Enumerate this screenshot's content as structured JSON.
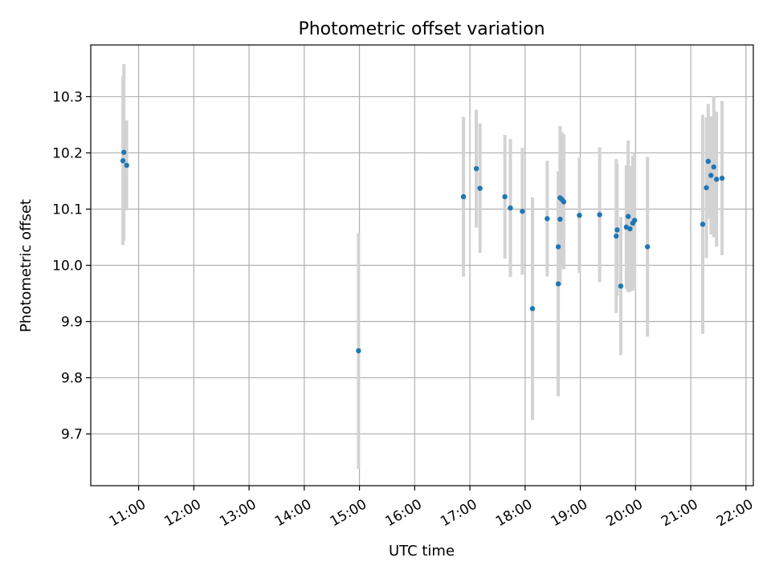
{
  "chart_data": {
    "type": "scatter",
    "title": "Photometric offset variation",
    "xlabel": "UTC time",
    "ylabel": "Photometric offset",
    "x_unit": "hours UTC",
    "xlim": [
      "10:08",
      "22:08"
    ],
    "ylim": [
      9.608,
      10.392
    ],
    "x_ticks": [
      "11:00",
      "12:00",
      "13:00",
      "14:00",
      "15:00",
      "16:00",
      "17:00",
      "18:00",
      "19:00",
      "20:00",
      "21:00",
      "22:00"
    ],
    "y_ticks": [
      "9.7",
      "9.8",
      "9.9",
      "10.0",
      "10.1",
      "10.2",
      "10.3"
    ],
    "grid": true,
    "legend": "none",
    "point_color": "#1f77b4",
    "errorbar_color": "#d3d3d3",
    "points": [
      {
        "x": "10:43",
        "y": 10.186,
        "err": 0.15
      },
      {
        "x": "10:44",
        "y": 10.201,
        "err": 0.157
      },
      {
        "x": "10:47",
        "y": 10.178,
        "err": 0.08
      },
      {
        "x": "14:59",
        "y": 9.848,
        "err": 0.21
      },
      {
        "x": "16:53",
        "y": 10.122,
        "err": 0.142
      },
      {
        "x": "17:07",
        "y": 10.172,
        "err": 0.105
      },
      {
        "x": "17:11",
        "y": 10.137,
        "err": 0.115
      },
      {
        "x": "17:38",
        "y": 10.122,
        "err": 0.11
      },
      {
        "x": "17:44",
        "y": 10.102,
        "err": 0.123
      },
      {
        "x": "17:57",
        "y": 10.096,
        "err": 0.113
      },
      {
        "x": "18:08",
        "y": 9.923,
        "err": 0.198
      },
      {
        "x": "18:24",
        "y": 10.083,
        "err": 0.103
      },
      {
        "x": "18:36",
        "y": 10.033,
        "err": 0.12
      },
      {
        "x": "18:36",
        "y": 9.967,
        "err": 0.2
      },
      {
        "x": "18:38",
        "y": 10.082,
        "err": 0.118
      },
      {
        "x": "18:38",
        "y": 10.12,
        "err": 0.128
      },
      {
        "x": "18:40",
        "y": 10.117,
        "err": 0.12
      },
      {
        "x": "18:42",
        "y": 10.113,
        "err": 0.12
      },
      {
        "x": "18:59",
        "y": 10.089,
        "err": 0.103
      },
      {
        "x": "19:21",
        "y": 10.09,
        "err": 0.12
      },
      {
        "x": "19:39",
        "y": 10.052,
        "err": 0.137
      },
      {
        "x": "19:40",
        "y": 10.063,
        "err": 0.117
      },
      {
        "x": "19:44",
        "y": 9.963,
        "err": 0.123
      },
      {
        "x": "19:50",
        "y": 10.068,
        "err": 0.11
      },
      {
        "x": "19:52",
        "y": 10.087,
        "err": 0.135
      },
      {
        "x": "19:54",
        "y": 10.065,
        "err": 0.112
      },
      {
        "x": "19:57",
        "y": 10.075,
        "err": 0.12
      },
      {
        "x": "19:59",
        "y": 10.08,
        "err": 0.12
      },
      {
        "x": "20:13",
        "y": 10.033,
        "err": 0.16
      },
      {
        "x": "21:13",
        "y": 10.073,
        "err": 0.195
      },
      {
        "x": "21:17",
        "y": 10.138,
        "err": 0.125
      },
      {
        "x": "21:19",
        "y": 10.185,
        "err": 0.102
      },
      {
        "x": "21:22",
        "y": 10.16,
        "err": 0.105
      },
      {
        "x": "21:25",
        "y": 10.175,
        "err": 0.125
      },
      {
        "x": "21:28",
        "y": 10.153,
        "err": 0.12
      },
      {
        "x": "21:34",
        "y": 10.155,
        "err": 0.137
      }
    ]
  }
}
